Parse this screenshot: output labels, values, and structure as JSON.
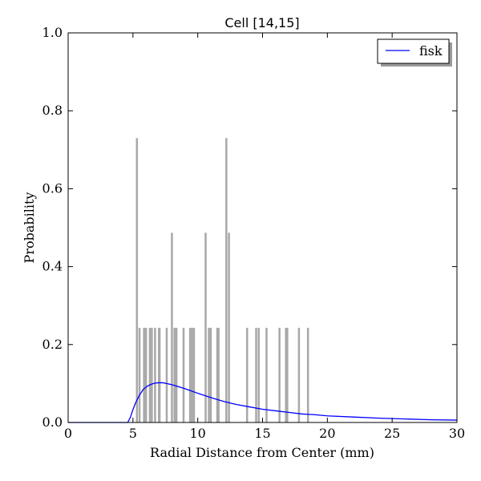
{
  "chart_data": {
    "type": "bar",
    "title": "Cell [14,15]",
    "xlabel": "Radial Distance from Center (mm)",
    "ylabel": "Probability",
    "xlim": [
      0,
      30
    ],
    "ylim": [
      0,
      1.0
    ],
    "xticks": [
      0,
      5,
      10,
      15,
      20,
      25,
      30
    ],
    "xtick_labels": [
      "0",
      "5",
      "10",
      "15",
      "20",
      "25",
      "30"
    ],
    "yticks": [
      0.0,
      0.2,
      0.4,
      0.6,
      0.8,
      1.0
    ],
    "ytick_labels": [
      "0.0",
      "0.2",
      "0.4",
      "0.6",
      "0.8",
      "1.0"
    ],
    "grid": false,
    "legend": {
      "placement": "top-right",
      "entries": [
        {
          "label": "fisk",
          "color": "#0000ff"
        }
      ]
    },
    "histogram": {
      "color": "#a8a8a8",
      "bins": [
        {
          "x": 5.3,
          "value": 0.73
        },
        {
          "x": 5.5,
          "value": 0.243
        },
        {
          "x": 5.85,
          "value": 0.243
        },
        {
          "x": 6.0,
          "value": 0.243
        },
        {
          "x": 6.3,
          "value": 0.243
        },
        {
          "x": 6.45,
          "value": 0.243
        },
        {
          "x": 6.7,
          "value": 0.243
        },
        {
          "x": 7.0,
          "value": 0.243
        },
        {
          "x": 7.05,
          "value": 0.243
        },
        {
          "x": 7.6,
          "value": 0.243
        },
        {
          "x": 8.0,
          "value": 0.487
        },
        {
          "x": 8.2,
          "value": 0.243
        },
        {
          "x": 8.35,
          "value": 0.243
        },
        {
          "x": 8.9,
          "value": 0.243
        },
        {
          "x": 9.4,
          "value": 0.243
        },
        {
          "x": 9.55,
          "value": 0.243
        },
        {
          "x": 9.7,
          "value": 0.243
        },
        {
          "x": 10.6,
          "value": 0.487
        },
        {
          "x": 10.85,
          "value": 0.243
        },
        {
          "x": 11.0,
          "value": 0.243
        },
        {
          "x": 11.5,
          "value": 0.243
        },
        {
          "x": 11.6,
          "value": 0.243
        },
        {
          "x": 12.2,
          "value": 0.73
        },
        {
          "x": 12.4,
          "value": 0.487
        },
        {
          "x": 13.8,
          "value": 0.243
        },
        {
          "x": 14.5,
          "value": 0.243
        },
        {
          "x": 14.7,
          "value": 0.243
        },
        {
          "x": 15.3,
          "value": 0.243
        },
        {
          "x": 16.3,
          "value": 0.243
        },
        {
          "x": 16.8,
          "value": 0.243
        },
        {
          "x": 16.9,
          "value": 0.243
        },
        {
          "x": 17.8,
          "value": 0.243
        },
        {
          "x": 18.5,
          "value": 0.243
        }
      ]
    },
    "series": [
      {
        "name": "fisk",
        "type": "line",
        "color": "#0000ff",
        "x": [
          0,
          4.6,
          4.8,
          5.0,
          5.2,
          5.5,
          5.8,
          6.1,
          6.4,
          6.7,
          7.0,
          7.3,
          7.6,
          8.0,
          8.5,
          9.0,
          9.5,
          10.0,
          11.0,
          12.0,
          13.0,
          14.0,
          15.0,
          16.0,
          17.0,
          18.0,
          19.0,
          20.0,
          22.0,
          24.0,
          26.0,
          28.0,
          30.0
        ],
        "y": [
          0.0,
          0.0,
          0.013,
          0.033,
          0.05,
          0.07,
          0.085,
          0.093,
          0.098,
          0.101,
          0.102,
          0.102,
          0.1,
          0.097,
          0.092,
          0.087,
          0.081,
          0.075,
          0.064,
          0.054,
          0.046,
          0.04,
          0.034,
          0.03,
          0.026,
          0.022,
          0.02,
          0.017,
          0.014,
          0.011,
          0.009,
          0.007,
          0.006
        ]
      }
    ]
  }
}
